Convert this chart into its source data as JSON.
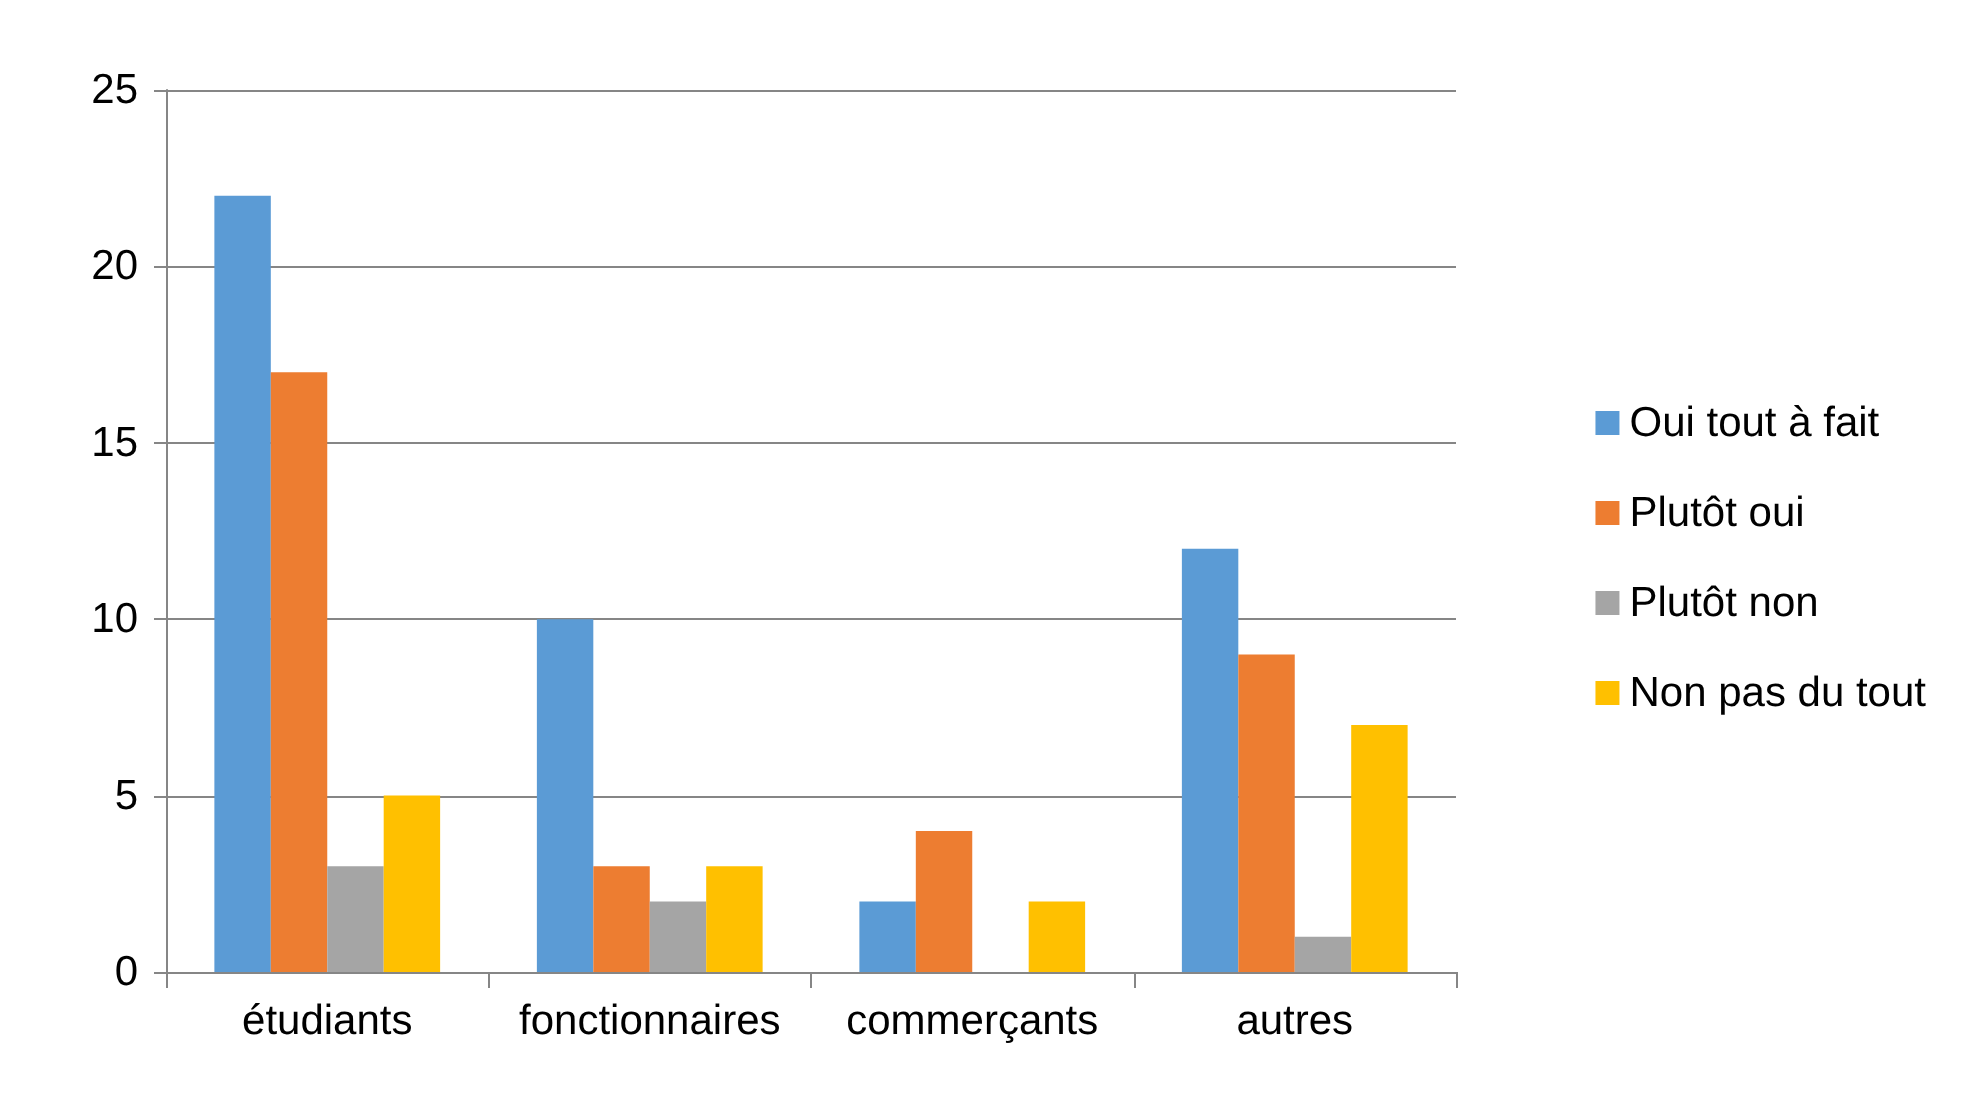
{
  "chart_data": {
    "type": "bar",
    "categories": [
      "étudiants",
      "fonctionnaires",
      "commerçants",
      "autres"
    ],
    "series": [
      {
        "name": "Oui tout à fait",
        "color": "#5b9bd5",
        "values": [
          22,
          10,
          2,
          12
        ]
      },
      {
        "name": "Plutôt oui",
        "color": "#ed7d31",
        "values": [
          17,
          3,
          4,
          9
        ]
      },
      {
        "name": "Plutôt non",
        "color": "#a5a5a5",
        "values": [
          3,
          2,
          0,
          1
        ]
      },
      {
        "name": "Non pas du tout",
        "color": "#ffc000",
        "values": [
          5,
          3,
          2,
          7
        ]
      }
    ],
    "ylim": [
      0,
      25
    ],
    "yticks": [
      0,
      5,
      10,
      15,
      20,
      25
    ],
    "grid": "y",
    "legend": "right"
  }
}
